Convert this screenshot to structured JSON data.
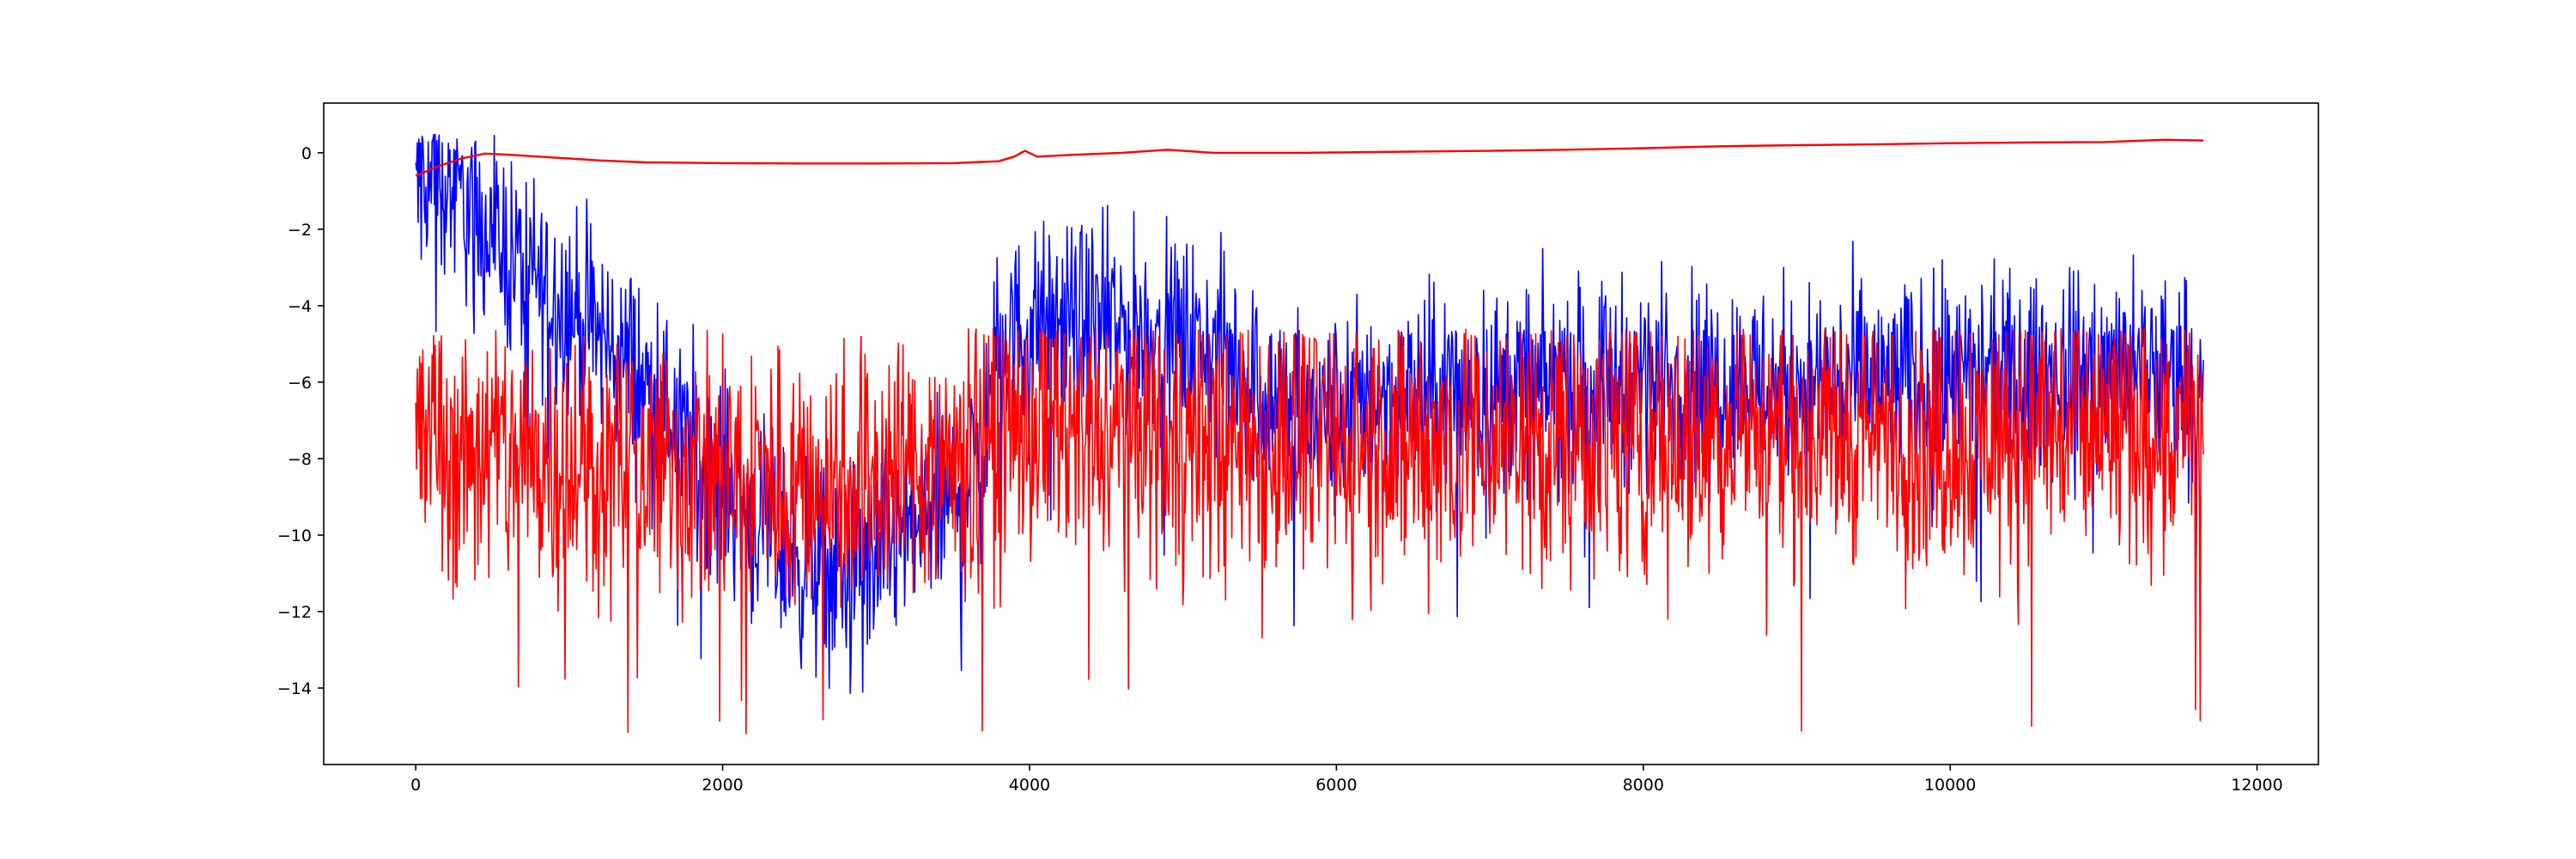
{
  "chart_data": {
    "type": "line",
    "title": "",
    "xlabel": "",
    "ylabel": "",
    "xlim": [
      -600,
      12400
    ],
    "ylim": [
      -16.0,
      1.3
    ],
    "xticks": [
      0,
      2000,
      4000,
      6000,
      8000,
      10000,
      12000
    ],
    "yticks": [
      0,
      -2,
      -4,
      -6,
      -8,
      -10,
      -12,
      -14
    ],
    "grid": false,
    "legend": "none",
    "series": [
      {
        "color": "#0000ff",
        "x_range": [
          0,
          11650
        ],
        "mean_profile": [
          [
            0,
            -0.5
          ],
          [
            200,
            -0.9
          ],
          [
            400,
            -1.6
          ],
          [
            600,
            -2.6
          ],
          [
            800,
            -3.4
          ],
          [
            1000,
            -4.0
          ],
          [
            1200,
            -4.8
          ],
          [
            1400,
            -5.6
          ],
          [
            1600,
            -6.6
          ],
          [
            1800,
            -7.6
          ],
          [
            2000,
            -8.6
          ],
          [
            2200,
            -9.6
          ],
          [
            2400,
            -10.4
          ],
          [
            2600,
            -10.9
          ],
          [
            2800,
            -11.0
          ],
          [
            3000,
            -10.6
          ],
          [
            3200,
            -10.0
          ],
          [
            3400,
            -9.4
          ],
          [
            3600,
            -8.6
          ],
          [
            3700,
            -7.8
          ],
          [
            3800,
            -5.2
          ],
          [
            4000,
            -4.6
          ],
          [
            4300,
            -4.5
          ],
          [
            4700,
            -4.7
          ],
          [
            5000,
            -4.9
          ],
          [
            5300,
            -5.4
          ],
          [
            5600,
            -6.5
          ],
          [
            5900,
            -7.2
          ],
          [
            6200,
            -6.4
          ],
          [
            7000,
            -6.2
          ],
          [
            8000,
            -5.9
          ],
          [
            9000,
            -6.0
          ],
          [
            10000,
            -6.0
          ],
          [
            11000,
            -5.8
          ],
          [
            11650,
            -5.8
          ]
        ],
        "noise_amplitude": 1.3,
        "min": -14.2,
        "max": 0.5
      },
      {
        "color": "#ff0000",
        "x_range": [
          0,
          11650
        ],
        "mean_profile": [
          [
            0,
            -7.6
          ],
          [
            500,
            -7.8
          ],
          [
            1000,
            -8.0
          ],
          [
            1500,
            -8.3
          ],
          [
            2000,
            -8.5
          ],
          [
            2500,
            -8.6
          ],
          [
            3000,
            -8.4
          ],
          [
            3500,
            -8.0
          ],
          [
            3800,
            -7.3
          ],
          [
            4500,
            -7.3
          ],
          [
            5500,
            -7.5
          ],
          [
            6500,
            -7.6
          ],
          [
            7500,
            -7.4
          ],
          [
            8500,
            -7.4
          ],
          [
            9500,
            -7.3
          ],
          [
            10500,
            -7.4
          ],
          [
            11650,
            -7.3
          ]
        ],
        "noise_amplitude": 1.8,
        "min": -15.2,
        "max": -4.6
      },
      {
        "color": "#ff0000",
        "x_range": [
          0,
          11650
        ],
        "points": [
          [
            0,
            -0.6
          ],
          [
            150,
            -0.35
          ],
          [
            300,
            -0.15
          ],
          [
            450,
            -0.02
          ],
          [
            600,
            -0.05
          ],
          [
            800,
            -0.1
          ],
          [
            1000,
            -0.15
          ],
          [
            1200,
            -0.2
          ],
          [
            1500,
            -0.25
          ],
          [
            2000,
            -0.27
          ],
          [
            2500,
            -0.28
          ],
          [
            3000,
            -0.28
          ],
          [
            3500,
            -0.27
          ],
          [
            3800,
            -0.22
          ],
          [
            3900,
            -0.1
          ],
          [
            3970,
            0.05
          ],
          [
            4050,
            -0.1
          ],
          [
            4300,
            -0.05
          ],
          [
            4600,
            0.0
          ],
          [
            4900,
            0.08
          ],
          [
            5200,
            0.0
          ],
          [
            5800,
            0.0
          ],
          [
            6500,
            0.03
          ],
          [
            7000,
            0.05
          ],
          [
            7500,
            0.08
          ],
          [
            8000,
            0.12
          ],
          [
            8500,
            0.17
          ],
          [
            9000,
            0.2
          ],
          [
            9500,
            0.22
          ],
          [
            10000,
            0.25
          ],
          [
            10500,
            0.27
          ],
          [
            11000,
            0.28
          ],
          [
            11400,
            0.34
          ],
          [
            11650,
            0.32
          ]
        ]
      }
    ]
  }
}
